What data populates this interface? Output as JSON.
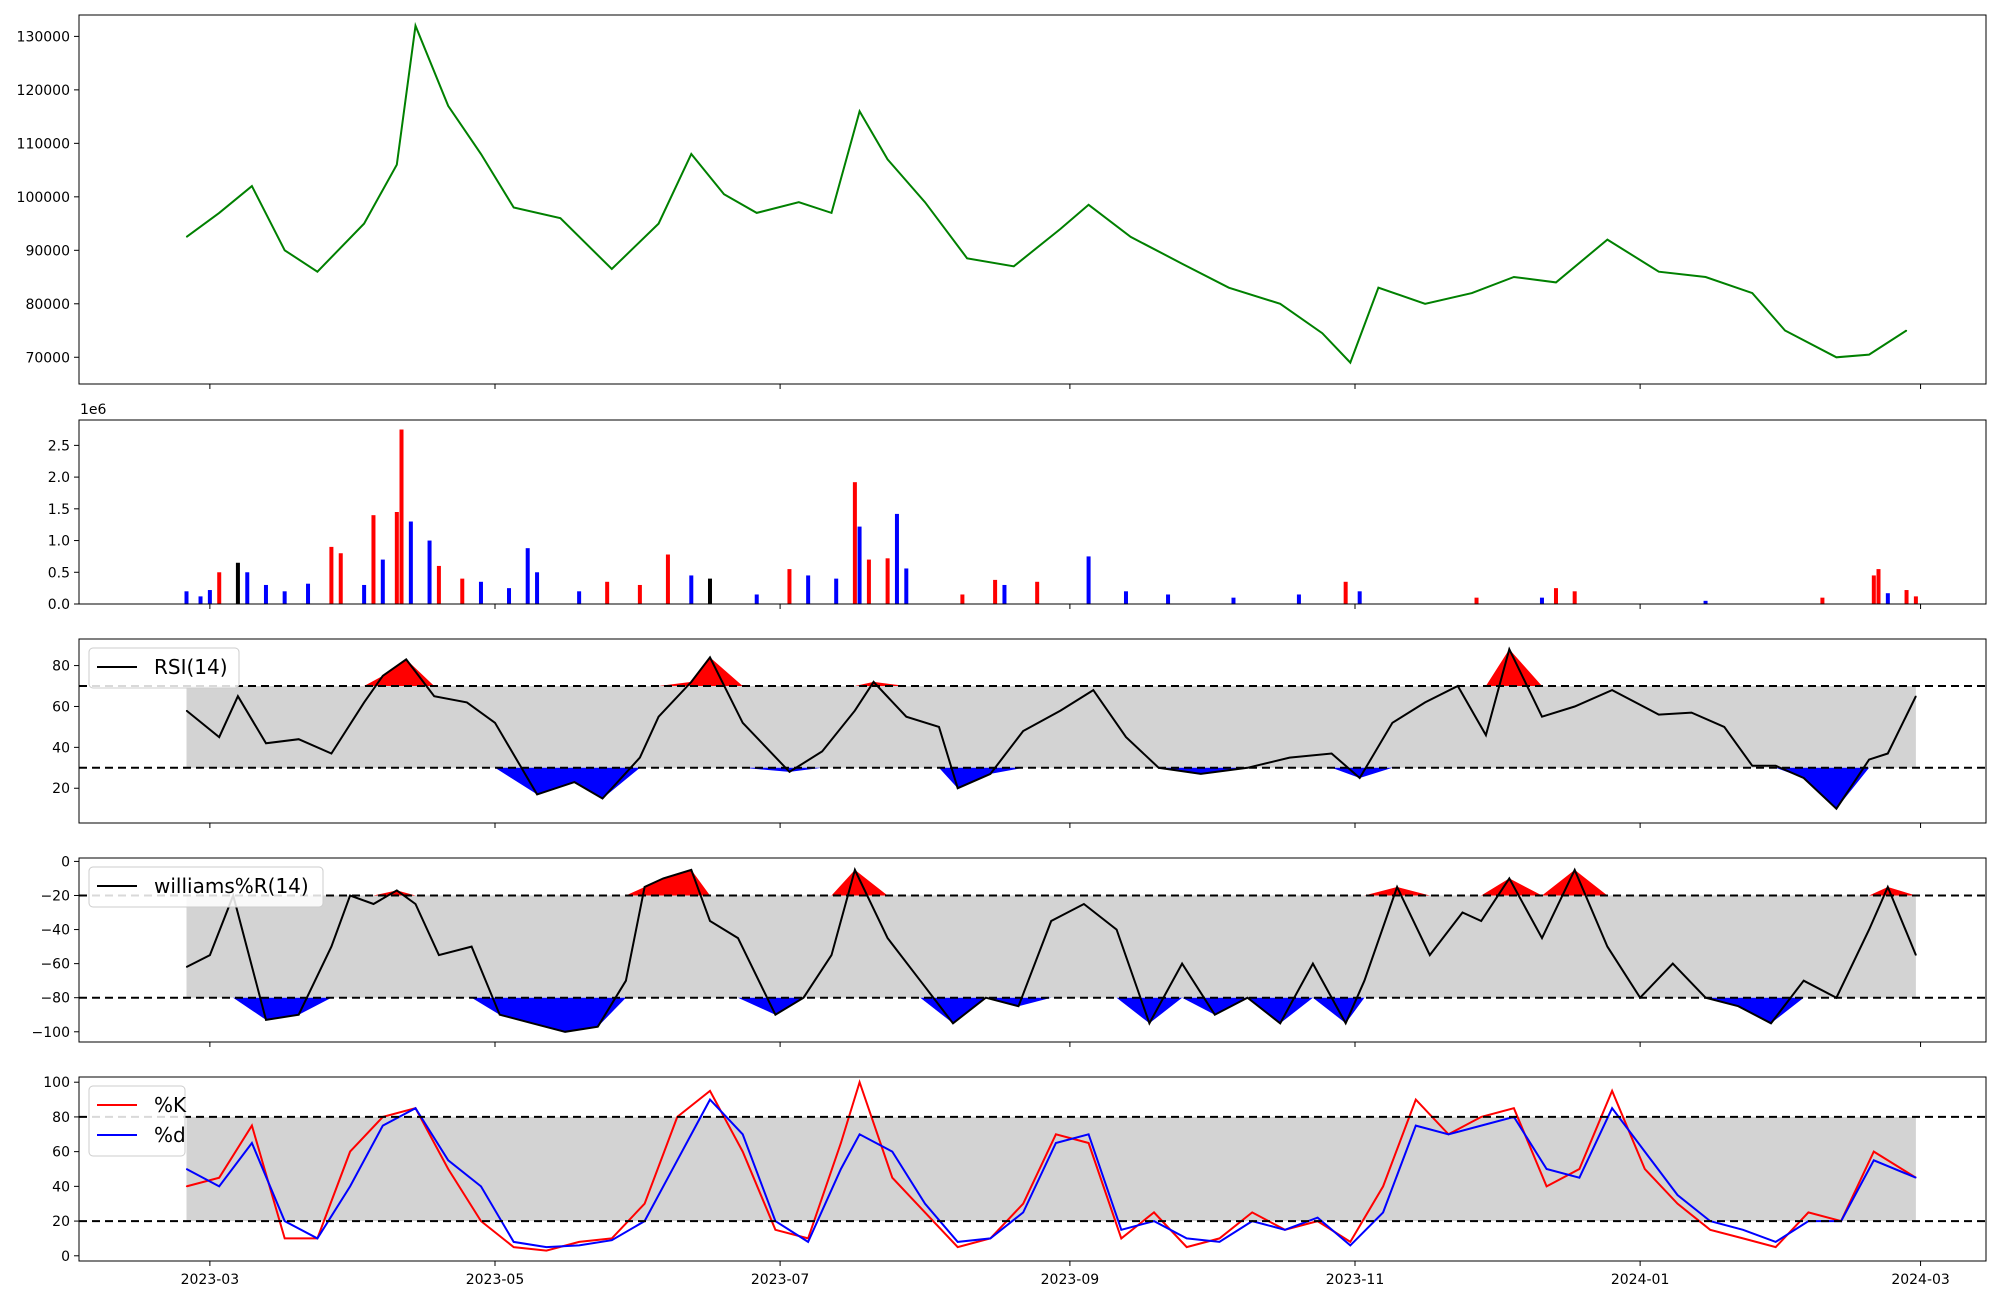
{
  "chart_data": [
    {
      "type": "line",
      "name_hint": "price",
      "color": "#008000",
      "xlim": [
        "2023-02-01",
        "2024-03-15"
      ],
      "ylim": [
        65000,
        134000
      ],
      "yticks": [
        70000,
        80000,
        90000,
        100000,
        110000,
        120000,
        130000
      ],
      "ytick_labels": [
        "70000",
        "80000",
        "90000",
        "100000",
        "110000",
        "120000",
        "130000"
      ],
      "series": [
        {
          "x": [
            "2023-02-24",
            "2023-03-03",
            "2023-03-10",
            "2023-03-17",
            "2023-03-24",
            "2023-04-03",
            "2023-04-10",
            "2023-04-14",
            "2023-04-21",
            "2023-04-28",
            "2023-05-05",
            "2023-05-15",
            "2023-05-26",
            "2023-06-05",
            "2023-06-12",
            "2023-06-19",
            "2023-06-26",
            "2023-07-05",
            "2023-07-12",
            "2023-07-18",
            "2023-07-24",
            "2023-08-01",
            "2023-08-10",
            "2023-08-20",
            "2023-08-30",
            "2023-09-05",
            "2023-09-14",
            "2023-09-25",
            "2023-10-05",
            "2023-10-16",
            "2023-10-25",
            "2023-10-31",
            "2023-11-06",
            "2023-11-16",
            "2023-11-26",
            "2023-12-05",
            "2023-12-14",
            "2023-12-25",
            "2024-01-05",
            "2024-01-15",
            "2024-01-25",
            "2024-02-01",
            "2024-02-12",
            "2024-02-19",
            "2024-02-27"
          ],
          "values": [
            92500,
            97000,
            102000,
            90000,
            86000,
            95000,
            106000,
            132000,
            117000,
            108000,
            98000,
            96000,
            86500,
            95000,
            108000,
            100500,
            97000,
            99000,
            97000,
            116000,
            107000,
            99000,
            88500,
            87000,
            94000,
            98500,
            92500,
            87500,
            83000,
            80000,
            74500,
            69000,
            83000,
            80000,
            82000,
            85000,
            84000,
            92000,
            86000,
            85000,
            82000,
            75000,
            70000,
            70500,
            75000
          ]
        }
      ]
    },
    {
      "type": "bar",
      "name_hint": "volume",
      "exponent_label": "1e6",
      "ylim": [
        0,
        2.9
      ],
      "yticks": [
        0.0,
        0.5,
        1.0,
        1.5,
        2.0,
        2.5
      ],
      "ytick_labels": [
        "0.0",
        "0.5",
        "1.0",
        "1.5",
        "2.0",
        "2.5"
      ],
      "colors": {
        "up": "#ff0000",
        "down": "#0000ff",
        "flat": "#000000"
      },
      "bars": [
        [
          "2023-02-24",
          0.2,
          "down"
        ],
        [
          "2023-02-27",
          0.12,
          "down"
        ],
        [
          "2023-03-01",
          0.22,
          "down"
        ],
        [
          "2023-03-03",
          0.5,
          "up"
        ],
        [
          "2023-03-07",
          0.65,
          "flat"
        ],
        [
          "2023-03-09",
          0.5,
          "down"
        ],
        [
          "2023-03-13",
          0.3,
          "down"
        ],
        [
          "2023-03-17",
          0.2,
          "down"
        ],
        [
          "2023-03-22",
          0.32,
          "down"
        ],
        [
          "2023-03-27",
          0.9,
          "up"
        ],
        [
          "2023-03-29",
          0.8,
          "up"
        ],
        [
          "2023-04-03",
          0.3,
          "down"
        ],
        [
          "2023-04-05",
          1.4,
          "up"
        ],
        [
          "2023-04-07",
          0.7,
          "down"
        ],
        [
          "2023-04-10",
          1.45,
          "up"
        ],
        [
          "2023-04-11",
          2.75,
          "up"
        ],
        [
          "2023-04-13",
          1.3,
          "down"
        ],
        [
          "2023-04-17",
          1.0,
          "down"
        ],
        [
          "2023-04-19",
          0.6,
          "up"
        ],
        [
          "2023-04-24",
          0.4,
          "up"
        ],
        [
          "2023-04-28",
          0.35,
          "down"
        ],
        [
          "2023-05-04",
          0.25,
          "down"
        ],
        [
          "2023-05-08",
          0.88,
          "down"
        ],
        [
          "2023-05-10",
          0.5,
          "down"
        ],
        [
          "2023-05-19",
          0.2,
          "down"
        ],
        [
          "2023-05-25",
          0.35,
          "up"
        ],
        [
          "2023-06-01",
          0.3,
          "up"
        ],
        [
          "2023-06-07",
          0.78,
          "up"
        ],
        [
          "2023-06-12",
          0.45,
          "down"
        ],
        [
          "2023-06-16",
          0.4,
          "flat"
        ],
        [
          "2023-06-26",
          0.15,
          "down"
        ],
        [
          "2023-07-03",
          0.55,
          "up"
        ],
        [
          "2023-07-07",
          0.45,
          "down"
        ],
        [
          "2023-07-13",
          0.4,
          "down"
        ],
        [
          "2023-07-17",
          1.92,
          "up"
        ],
        [
          "2023-07-18",
          1.22,
          "down"
        ],
        [
          "2023-07-20",
          0.7,
          "up"
        ],
        [
          "2023-07-24",
          0.72,
          "up"
        ],
        [
          "2023-07-26",
          1.42,
          "down"
        ],
        [
          "2023-07-28",
          0.56,
          "down"
        ],
        [
          "2023-08-09",
          0.15,
          "up"
        ],
        [
          "2023-08-16",
          0.38,
          "up"
        ],
        [
          "2023-08-18",
          0.3,
          "down"
        ],
        [
          "2023-08-25",
          0.35,
          "up"
        ],
        [
          "2023-09-05",
          0.75,
          "down"
        ],
        [
          "2023-09-13",
          0.2,
          "down"
        ],
        [
          "2023-09-22",
          0.15,
          "down"
        ],
        [
          "2023-10-06",
          0.1,
          "down"
        ],
        [
          "2023-10-20",
          0.15,
          "down"
        ],
        [
          "2023-10-30",
          0.35,
          "up"
        ],
        [
          "2023-11-02",
          0.2,
          "down"
        ],
        [
          "2023-11-27",
          0.1,
          "up"
        ],
        [
          "2023-12-11",
          0.1,
          "down"
        ],
        [
          "2023-12-14",
          0.25,
          "up"
        ],
        [
          "2023-12-18",
          0.2,
          "up"
        ],
        [
          "2024-01-15",
          0.05,
          "down"
        ],
        [
          "2024-02-09",
          0.1,
          "up"
        ],
        [
          "2024-02-20",
          0.45,
          "up"
        ],
        [
          "2024-02-21",
          0.55,
          "up"
        ],
        [
          "2024-02-23",
          0.17,
          "down"
        ],
        [
          "2024-02-27",
          0.22,
          "up"
        ],
        [
          "2024-02-29",
          0.12,
          "up"
        ]
      ]
    },
    {
      "type": "line",
      "name_hint": "rsi",
      "legend": [
        "RSI(14)"
      ],
      "ylim": [
        3,
        93
      ],
      "yticks": [
        20,
        40,
        60,
        80
      ],
      "ytick_labels": [
        "20",
        "40",
        "60",
        "80"
      ],
      "band": [
        30,
        70
      ],
      "series": [
        {
          "name": "RSI(14)",
          "x": [
            "2023-02-24",
            "2023-03-03",
            "2023-03-07",
            "2023-03-13",
            "2023-03-20",
            "2023-03-27",
            "2023-04-03",
            "2023-04-07",
            "2023-04-12",
            "2023-04-18",
            "2023-04-25",
            "2023-05-01",
            "2023-05-10",
            "2023-05-18",
            "2023-05-24",
            "2023-06-01",
            "2023-06-05",
            "2023-06-12",
            "2023-06-16",
            "2023-06-23",
            "2023-07-03",
            "2023-07-10",
            "2023-07-17",
            "2023-07-21",
            "2023-07-28",
            "2023-08-04",
            "2023-08-08",
            "2023-08-15",
            "2023-08-22",
            "2023-08-30",
            "2023-09-06",
            "2023-09-13",
            "2023-09-20",
            "2023-09-29",
            "2023-10-09",
            "2023-10-18",
            "2023-10-27",
            "2023-11-02",
            "2023-11-09",
            "2023-11-16",
            "2023-11-23",
            "2023-11-29",
            "2023-12-04",
            "2023-12-11",
            "2023-12-18",
            "2023-12-26",
            "2024-01-05",
            "2024-01-12",
            "2024-01-19",
            "2024-01-25",
            "2024-01-30",
            "2024-02-05",
            "2024-02-12",
            "2024-02-19",
            "2024-02-23",
            "2024-02-29"
          ],
          "values": [
            58,
            45,
            65,
            42,
            44,
            37,
            62,
            75,
            83,
            65,
            62,
            52,
            17,
            23,
            15,
            35,
            55,
            72,
            84,
            52,
            28,
            38,
            58,
            72,
            55,
            50,
            20,
            27,
            48,
            58,
            68,
            45,
            30,
            27,
            30,
            35,
            37,
            25,
            52,
            62,
            70,
            46,
            88,
            55,
            60,
            68,
            56,
            57,
            50,
            31,
            31,
            25,
            10,
            34,
            37,
            65
          ]
        }
      ]
    },
    {
      "type": "line",
      "name_hint": "williams",
      "legend": [
        "williams%R(14)"
      ],
      "ylim": [
        -106,
        2
      ],
      "yticks": [
        -100,
        -80,
        -60,
        -40,
        -20,
        0
      ],
      "ytick_labels": [
        "−100",
        "−80",
        "−60",
        "−40",
        "−20",
        "0"
      ],
      "band": [
        -80,
        -20
      ],
      "series": [
        {
          "name": "williams%R(14)",
          "x": [
            "2023-02-24",
            "2023-03-01",
            "2023-03-06",
            "2023-03-13",
            "2023-03-20",
            "2023-03-27",
            "2023-03-31",
            "2023-04-05",
            "2023-04-10",
            "2023-04-14",
            "2023-04-19",
            "2023-04-26",
            "2023-05-02",
            "2023-05-09",
            "2023-05-16",
            "2023-05-23",
            "2023-05-29",
            "2023-06-02",
            "2023-06-06",
            "2023-06-12",
            "2023-06-16",
            "2023-06-22",
            "2023-06-30",
            "2023-07-06",
            "2023-07-12",
            "2023-07-17",
            "2023-07-24",
            "2023-07-31",
            "2023-08-07",
            "2023-08-14",
            "2023-08-21",
            "2023-08-28",
            "2023-09-04",
            "2023-09-11",
            "2023-09-18",
            "2023-09-25",
            "2023-10-02",
            "2023-10-09",
            "2023-10-16",
            "2023-10-23",
            "2023-10-30",
            "2023-11-03",
            "2023-11-10",
            "2023-11-17",
            "2023-11-24",
            "2023-11-28",
            "2023-12-04",
            "2023-12-11",
            "2023-12-18",
            "2023-12-25",
            "2024-01-01",
            "2024-01-08",
            "2024-01-15",
            "2024-01-22",
            "2024-01-29",
            "2024-02-05",
            "2024-02-12",
            "2024-02-19",
            "2024-02-23",
            "2024-02-29"
          ],
          "values": [
            -62,
            -55,
            -20,
            -93,
            -90,
            -50,
            -20,
            -25,
            -17,
            -25,
            -55,
            -50,
            -90,
            -95,
            -100,
            -97,
            -70,
            -15,
            -10,
            -5,
            -35,
            -45,
            -90,
            -80,
            -55,
            -5,
            -45,
            -70,
            -95,
            -80,
            -85,
            -35,
            -25,
            -40,
            -95,
            -60,
            -90,
            -80,
            -95,
            -60,
            -95,
            -70,
            -15,
            -55,
            -30,
            -35,
            -10,
            -45,
            -5,
            -50,
            -80,
            -60,
            -80,
            -85,
            -95,
            -70,
            -80,
            -40,
            -15,
            -55
          ]
        }
      ]
    },
    {
      "type": "line",
      "name_hint": "stochastic",
      "legend": [
        "%K",
        "%d"
      ],
      "ylim": [
        -3,
        103
      ],
      "yticks": [
        0,
        20,
        40,
        60,
        80,
        100
      ],
      "ytick_labels": [
        "0",
        "20",
        "40",
        "60",
        "80",
        "100"
      ],
      "band": [
        20,
        80
      ],
      "series": [
        {
          "name": "%K",
          "color": "#ff0000",
          "x": [
            "2023-02-24",
            "2023-03-03",
            "2023-03-10",
            "2023-03-17",
            "2023-03-24",
            "2023-03-31",
            "2023-04-07",
            "2023-04-14",
            "2023-04-21",
            "2023-04-28",
            "2023-05-05",
            "2023-05-12",
            "2023-05-19",
            "2023-05-26",
            "2023-06-02",
            "2023-06-09",
            "2023-06-16",
            "2023-06-23",
            "2023-06-30",
            "2023-07-07",
            "2023-07-14",
            "2023-07-18",
            "2023-07-25",
            "2023-08-01",
            "2023-08-08",
            "2023-08-15",
            "2023-08-22",
            "2023-08-29",
            "2023-09-05",
            "2023-09-12",
            "2023-09-19",
            "2023-09-26",
            "2023-10-03",
            "2023-10-10",
            "2023-10-17",
            "2023-10-24",
            "2023-10-31",
            "2023-11-07",
            "2023-11-14",
            "2023-11-21",
            "2023-11-28",
            "2023-12-05",
            "2023-12-12",
            "2023-12-19",
            "2023-12-26",
            "2024-01-02",
            "2024-01-09",
            "2024-01-16",
            "2024-01-23",
            "2024-01-30",
            "2024-02-06",
            "2024-02-13",
            "2024-02-20",
            "2024-02-29"
          ],
          "values": [
            40,
            45,
            75,
            10,
            10,
            60,
            80,
            85,
            50,
            20,
            5,
            3,
            8,
            10,
            30,
            80,
            95,
            60,
            15,
            10,
            65,
            100,
            45,
            25,
            5,
            10,
            30,
            70,
            65,
            10,
            25,
            5,
            10,
            25,
            15,
            20,
            8,
            40,
            90,
            70,
            80,
            85,
            40,
            50,
            95,
            50,
            30,
            15,
            10,
            5,
            25,
            20,
            60,
            45
          ]
        },
        {
          "name": "%d",
          "color": "#0000ff",
          "x": [
            "2023-02-24",
            "2023-03-03",
            "2023-03-10",
            "2023-03-17",
            "2023-03-24",
            "2023-03-31",
            "2023-04-07",
            "2023-04-14",
            "2023-04-21",
            "2023-04-28",
            "2023-05-05",
            "2023-05-12",
            "2023-05-19",
            "2023-05-26",
            "2023-06-02",
            "2023-06-09",
            "2023-06-16",
            "2023-06-23",
            "2023-06-30",
            "2023-07-07",
            "2023-07-14",
            "2023-07-18",
            "2023-07-25",
            "2023-08-01",
            "2023-08-08",
            "2023-08-15",
            "2023-08-22",
            "2023-08-29",
            "2023-09-05",
            "2023-09-12",
            "2023-09-19",
            "2023-09-26",
            "2023-10-03",
            "2023-10-10",
            "2023-10-17",
            "2023-10-24",
            "2023-10-31",
            "2023-11-07",
            "2023-11-14",
            "2023-11-21",
            "2023-11-28",
            "2023-12-05",
            "2023-12-12",
            "2023-12-19",
            "2023-12-26",
            "2024-01-02",
            "2024-01-09",
            "2024-01-16",
            "2024-01-23",
            "2024-01-30",
            "2024-02-06",
            "2024-02-13",
            "2024-02-20",
            "2024-02-29"
          ],
          "values": [
            50,
            40,
            65,
            20,
            10,
            40,
            75,
            85,
            55,
            40,
            8,
            5,
            6,
            9,
            20,
            55,
            90,
            70,
            20,
            8,
            50,
            70,
            60,
            30,
            8,
            10,
            25,
            65,
            70,
            15,
            20,
            10,
            8,
            20,
            15,
            22,
            6,
            25,
            75,
            70,
            75,
            80,
            50,
            45,
            85,
            60,
            35,
            20,
            15,
            8,
            20,
            20,
            55,
            45
          ]
        }
      ],
      "xticks": [
        "2023-03-01",
        "2023-05-01",
        "2023-07-01",
        "2023-09-01",
        "2023-11-01",
        "2024-01-01",
        "2024-03-01"
      ],
      "xtick_labels": [
        "2023-03",
        "2023-05",
        "2023-07",
        "2023-09",
        "2023-11",
        "2024-01",
        "2024-03"
      ]
    }
  ]
}
